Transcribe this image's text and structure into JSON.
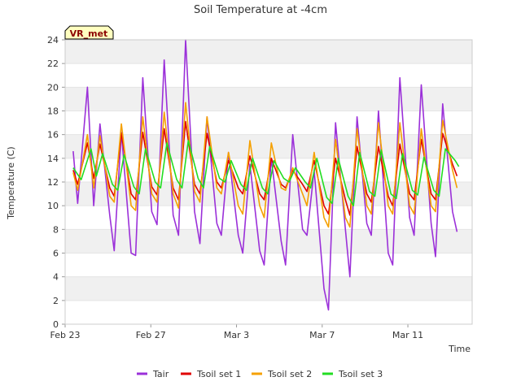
{
  "chart_data": {
    "type": "line",
    "title": "Soil Temperature at -4cm",
    "xlabel": "Time",
    "ylabel": "Temperature (C)",
    "ylim": [
      0,
      24
    ],
    "yticks": [
      0,
      2,
      4,
      6,
      8,
      10,
      12,
      14,
      16,
      18,
      20,
      22,
      24
    ],
    "xlim": [
      "2023-02-23",
      "2023-03-14"
    ],
    "xticks": [
      {
        "label": "Feb 23",
        "date": "2023-02-23"
      },
      {
        "label": "Feb 27",
        "date": "2023-02-27"
      },
      {
        "label": "Mar 3",
        "date": "2023-03-03"
      },
      {
        "label": "Mar 7",
        "date": "2023-03-07"
      },
      {
        "label": "Mar 11",
        "date": "2023-03-11"
      }
    ],
    "grid": "horizontal alternating bands",
    "legend_position": "bottom",
    "station_label": "VR_met",
    "colors": {
      "Tair": "#9b30d9",
      "Tsoil set 1": "#e00000",
      "Tsoil set 2": "#f5a000",
      "Tsoil set 3": "#22dd22",
      "band": "#f0f0f0",
      "badge_fill": "#ffffc0"
    },
    "series": [
      {
        "name": "Tair",
        "x": [
          "2023-02-23T09:00",
          "2023-02-23T14:00",
          "2023-02-24T01:00",
          "2023-02-24T08:00",
          "2023-02-24T15:00",
          "2023-02-25T02:00",
          "2023-02-25T07:00",
          "2023-02-25T15:00",
          "2023-02-26T02:00",
          "2023-02-26T07:00",
          "2023-02-26T15:00",
          "2023-02-27T01:00",
          "2023-02-27T07:00",
          "2023-02-27T15:00",
          "2023-02-28T01:00",
          "2023-02-28T07:00",
          "2023-02-28T15:00",
          "2023-03-01T01:00",
          "2023-03-01T07:00",
          "2023-03-01T15:00",
          "2023-03-02T02:00",
          "2023-03-02T07:00",
          "2023-03-02T15:00",
          "2023-03-03T02:00",
          "2023-03-03T07:00",
          "2023-03-03T15:00",
          "2023-03-04T02:00",
          "2023-03-04T07:00",
          "2023-03-04T15:00",
          "2023-03-05T02:00",
          "2023-03-05T07:00",
          "2023-03-05T15:00",
          "2023-03-06T02:00",
          "2023-03-06T07:00",
          "2023-03-06T15:00",
          "2023-03-07T02:00",
          "2023-03-07T07:00",
          "2023-03-07T15:00",
          "2023-03-08T02:00",
          "2023-03-08T07:00",
          "2023-03-08T15:00",
          "2023-03-09T02:00",
          "2023-03-09T07:00",
          "2023-03-09T15:00",
          "2023-03-10T02:00",
          "2023-03-10T07:00",
          "2023-03-10T15:00",
          "2023-03-11T02:00",
          "2023-03-11T07:00",
          "2023-03-11T15:00",
          "2023-03-12T02:00",
          "2023-03-12T07:00",
          "2023-03-12T15:00",
          "2023-03-13T02:00",
          "2023-03-13T07:00"
        ],
        "values": [
          14.6,
          10.2,
          20.0,
          10.0,
          16.9,
          9.2,
          6.2,
          16.2,
          6.0,
          5.8,
          20.8,
          9.5,
          8.4,
          22.3,
          9.2,
          7.5,
          24.0,
          9.5,
          6.8,
          17.5,
          8.5,
          7.5,
          14.5,
          7.5,
          6.0,
          13.5,
          6.2,
          5.0,
          14.0,
          7.0,
          5.0,
          16.0,
          8.0,
          7.5,
          13.0,
          3.0,
          1.2,
          17.0,
          8.0,
          4.0,
          17.5,
          8.5,
          7.5,
          18.0,
          6.0,
          5.0,
          20.8,
          9.0,
          7.5,
          20.2,
          8.5,
          5.7,
          18.6,
          9.5,
          7.8
        ]
      },
      {
        "name": "Tsoil set 1",
        "x": [
          "2023-02-23T09:00",
          "2023-02-23T14:00",
          "2023-02-24T01:00",
          "2023-02-24T08:00",
          "2023-02-24T15:00",
          "2023-02-25T02:00",
          "2023-02-25T07:00",
          "2023-02-25T15:00",
          "2023-02-26T02:00",
          "2023-02-26T07:00",
          "2023-02-26T15:00",
          "2023-02-27T01:00",
          "2023-02-27T07:00",
          "2023-02-27T15:00",
          "2023-02-28T01:00",
          "2023-02-28T07:00",
          "2023-02-28T15:00",
          "2023-03-01T01:00",
          "2023-03-01T07:00",
          "2023-03-01T15:00",
          "2023-03-02T02:00",
          "2023-03-02T07:00",
          "2023-03-02T15:00",
          "2023-03-03T02:00",
          "2023-03-03T07:00",
          "2023-03-03T15:00",
          "2023-03-04T02:00",
          "2023-03-04T07:00",
          "2023-03-04T15:00",
          "2023-03-05T02:00",
          "2023-03-05T07:00",
          "2023-03-05T15:00",
          "2023-03-06T02:00",
          "2023-03-06T07:00",
          "2023-03-06T15:00",
          "2023-03-07T02:00",
          "2023-03-07T07:00",
          "2023-03-07T15:00",
          "2023-03-08T02:00",
          "2023-03-08T07:00",
          "2023-03-08T15:00",
          "2023-03-09T02:00",
          "2023-03-09T07:00",
          "2023-03-09T15:00",
          "2023-03-10T02:00",
          "2023-03-10T07:00",
          "2023-03-10T15:00",
          "2023-03-11T02:00",
          "2023-03-11T07:00",
          "2023-03-11T15:00",
          "2023-03-12T02:00",
          "2023-03-12T07:00",
          "2023-03-12T15:00",
          "2023-03-13T02:00",
          "2023-03-13T07:00"
        ],
        "values": [
          13.0,
          11.8,
          15.3,
          12.3,
          15.2,
          11.5,
          10.8,
          16.1,
          11.0,
          10.5,
          16.2,
          11.6,
          10.9,
          16.5,
          11.5,
          10.5,
          17.1,
          11.8,
          11.0,
          16.1,
          12.0,
          11.5,
          13.8,
          11.5,
          11.0,
          14.2,
          11.0,
          10.5,
          14.0,
          11.8,
          11.5,
          13.0,
          11.8,
          11.2,
          13.8,
          10.0,
          9.3,
          14.0,
          10.5,
          9.2,
          15.0,
          11.0,
          10.3,
          15.0,
          10.8,
          10.0,
          15.2,
          11.0,
          10.5,
          15.6,
          11.0,
          10.5,
          16.1,
          13.5,
          12.5
        ]
      },
      {
        "name": "Tsoil set 2",
        "x": [
          "2023-02-23T09:00",
          "2023-02-23T14:00",
          "2023-02-24T01:00",
          "2023-02-24T08:00",
          "2023-02-24T15:00",
          "2023-02-25T02:00",
          "2023-02-25T07:00",
          "2023-02-25T15:00",
          "2023-02-26T02:00",
          "2023-02-26T07:00",
          "2023-02-26T15:00",
          "2023-02-27T01:00",
          "2023-02-27T07:00",
          "2023-02-27T15:00",
          "2023-02-28T01:00",
          "2023-02-28T07:00",
          "2023-02-28T15:00",
          "2023-03-01T01:00",
          "2023-03-01T07:00",
          "2023-03-01T15:00",
          "2023-03-02T02:00",
          "2023-03-02T07:00",
          "2023-03-02T15:00",
          "2023-03-03T02:00",
          "2023-03-03T07:00",
          "2023-03-03T15:00",
          "2023-03-04T02:00",
          "2023-03-04T07:00",
          "2023-03-04T15:00",
          "2023-03-05T02:00",
          "2023-03-05T07:00",
          "2023-03-05T15:00",
          "2023-03-06T02:00",
          "2023-03-06T07:00",
          "2023-03-06T15:00",
          "2023-03-07T02:00",
          "2023-03-07T07:00",
          "2023-03-07T15:00",
          "2023-03-08T02:00",
          "2023-03-08T07:00",
          "2023-03-08T15:00",
          "2023-03-09T02:00",
          "2023-03-09T07:00",
          "2023-03-09T15:00",
          "2023-03-10T02:00",
          "2023-03-10T07:00",
          "2023-03-10T15:00",
          "2023-03-11T02:00",
          "2023-03-11T07:00",
          "2023-03-11T15:00",
          "2023-03-12T02:00",
          "2023-03-12T07:00",
          "2023-03-12T15:00",
          "2023-03-13T02:00",
          "2023-03-13T07:00"
        ],
        "values": [
          12.8,
          11.3,
          16.0,
          11.5,
          15.9,
          10.8,
          10.3,
          16.9,
          10.0,
          9.6,
          17.5,
          11.0,
          10.3,
          17.9,
          11.0,
          9.8,
          18.7,
          11.2,
          10.3,
          17.5,
          11.5,
          11.0,
          14.5,
          10.0,
          9.3,
          15.5,
          10.0,
          9.0,
          15.3,
          11.5,
          11.3,
          13.2,
          11.0,
          10.0,
          14.5,
          9.0,
          8.2,
          15.6,
          9.0,
          8.2,
          16.5,
          10.0,
          9.3,
          17.0,
          10.0,
          9.3,
          17.0,
          10.0,
          9.3,
          16.5,
          10.0,
          9.5,
          17.2,
          13.0,
          11.5
        ]
      },
      {
        "name": "Tsoil set 3",
        "x": [
          "2023-02-23T09:00",
          "2023-02-23T18:00",
          "2023-02-24T05:00",
          "2023-02-24T11:00",
          "2023-02-24T18:00",
          "2023-02-25T05:00",
          "2023-02-25T11:00",
          "2023-02-25T18:00",
          "2023-02-26T05:00",
          "2023-02-26T11:00",
          "2023-02-26T18:00",
          "2023-02-27T05:00",
          "2023-02-27T11:00",
          "2023-02-27T18:00",
          "2023-02-28T05:00",
          "2023-02-28T11:00",
          "2023-02-28T18:00",
          "2023-03-01T05:00",
          "2023-03-01T11:00",
          "2023-03-01T18:00",
          "2023-03-02T05:00",
          "2023-03-02T11:00",
          "2023-03-02T18:00",
          "2023-03-03T05:00",
          "2023-03-03T11:00",
          "2023-03-03T18:00",
          "2023-03-04T05:00",
          "2023-03-04T11:00",
          "2023-03-04T18:00",
          "2023-03-05T05:00",
          "2023-03-05T11:00",
          "2023-03-05T18:00",
          "2023-03-06T05:00",
          "2023-03-06T11:00",
          "2023-03-06T18:00",
          "2023-03-07T05:00",
          "2023-03-07T11:00",
          "2023-03-07T18:00",
          "2023-03-08T05:00",
          "2023-03-08T11:00",
          "2023-03-08T18:00",
          "2023-03-09T05:00",
          "2023-03-09T11:00",
          "2023-03-09T18:00",
          "2023-03-10T05:00",
          "2023-03-10T11:00",
          "2023-03-10T18:00",
          "2023-03-11T05:00",
          "2023-03-11T11:00",
          "2023-03-11T18:00",
          "2023-03-12T05:00",
          "2023-03-12T11:00",
          "2023-03-12T18:00",
          "2023-03-13T05:00",
          "2023-03-13T09:00"
        ],
        "values": [
          13.2,
          12.2,
          14.8,
          12.5,
          14.4,
          11.8,
          11.3,
          14.3,
          11.6,
          11.0,
          14.8,
          12.0,
          11.5,
          15.3,
          12.2,
          11.5,
          15.5,
          12.3,
          11.5,
          15.0,
          12.3,
          12.0,
          13.8,
          11.8,
          11.3,
          14.0,
          11.5,
          11.0,
          13.8,
          12.3,
          12.0,
          13.2,
          12.0,
          11.5,
          14.0,
          10.7,
          10.2,
          14.0,
          10.8,
          10.0,
          14.5,
          11.2,
          10.8,
          14.7,
          11.0,
          10.6,
          14.4,
          11.3,
          10.9,
          14.1,
          11.3,
          10.8,
          14.8,
          13.8,
          13.3
        ]
      }
    ]
  }
}
